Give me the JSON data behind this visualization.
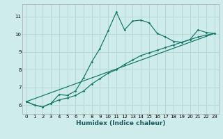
{
  "xlabel": "Humidex (Indice chaleur)",
  "bg_color": "#ceecea",
  "grid_color": "#b8d8d6",
  "line_color": "#1a7a6a",
  "xlim": [
    -0.5,
    23.5
  ],
  "ylim": [
    5.5,
    11.7
  ],
  "yticks": [
    6,
    7,
    8,
    9,
    10,
    11
  ],
  "xticks": [
    0,
    1,
    2,
    3,
    4,
    5,
    6,
    7,
    8,
    9,
    10,
    11,
    12,
    13,
    14,
    15,
    16,
    17,
    18,
    19,
    20,
    21,
    22,
    23
  ],
  "curve1_x": [
    0,
    1,
    2,
    3,
    4,
    5,
    6,
    7,
    8,
    9,
    10,
    11,
    12,
    13,
    14,
    15,
    16,
    17,
    18,
    19,
    20,
    21,
    22,
    23
  ],
  "curve1_y": [
    6.2,
    6.0,
    5.9,
    6.1,
    6.6,
    6.55,
    6.8,
    7.55,
    8.45,
    9.2,
    10.2,
    11.25,
    10.25,
    10.75,
    10.8,
    10.65,
    10.05,
    9.85,
    9.6,
    9.55,
    9.7,
    10.25,
    10.1,
    10.05
  ],
  "curve2_x": [
    0,
    1,
    2,
    3,
    4,
    5,
    6,
    7,
    8,
    9,
    10,
    11,
    12,
    13,
    14,
    15,
    16,
    17,
    18,
    19,
    20,
    21,
    22,
    23
  ],
  "curve2_y": [
    6.2,
    6.0,
    5.9,
    6.1,
    6.3,
    6.4,
    6.55,
    6.8,
    7.2,
    7.5,
    7.8,
    8.0,
    8.3,
    8.55,
    8.8,
    8.95,
    9.1,
    9.25,
    9.4,
    9.55,
    9.7,
    9.85,
    9.95,
    10.05
  ],
  "curve3_x": [
    0,
    23
  ],
  "curve3_y": [
    6.2,
    10.05
  ],
  "xlabel_fontsize": 6.5,
  "tick_fontsize": 5.0
}
